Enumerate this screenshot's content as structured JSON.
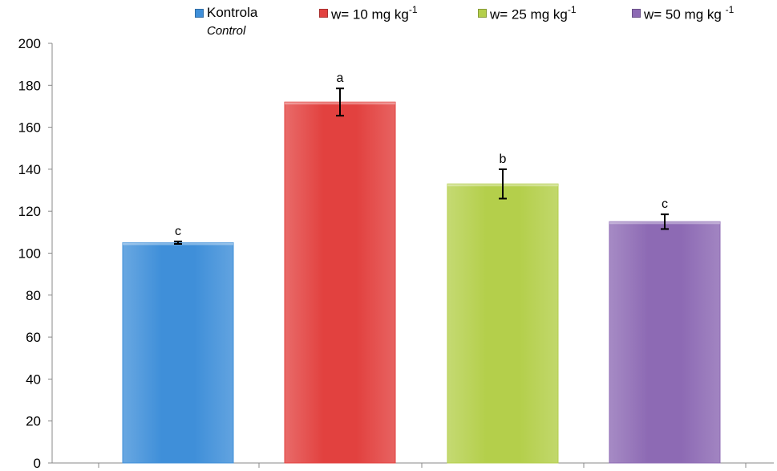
{
  "chart_data": {
    "type": "bar",
    "categories": [
      "Kontrola",
      "w= 10 mg kg-1",
      "w= 25 mg kg-1",
      "w= 50 mg kg-1"
    ],
    "values": [
      105,
      172,
      133,
      115
    ],
    "errors": [
      0.6,
      6.5,
      7,
      3.5
    ],
    "significance": [
      "c",
      "a",
      "b",
      "c"
    ],
    "colors": [
      "#3f8fd9",
      "#e2413f",
      "#b4cf4b",
      "#8d6ab4"
    ],
    "ylim": [
      0,
      200
    ],
    "yticks": [
      0,
      20,
      40,
      60,
      80,
      100,
      120,
      140,
      160,
      180,
      200
    ],
    "title": "",
    "xlabel": "",
    "ylabel": "",
    "grid": false,
    "legend_position": "top"
  },
  "legend": {
    "items": [
      {
        "label": "Kontrola",
        "sub": "Control",
        "sup": "",
        "color": "#3f8fd9"
      },
      {
        "label": "w= 10 mg kg",
        "sup": "-1",
        "color": "#e2413f"
      },
      {
        "label": "w= 25 mg kg",
        "sup": "-1",
        "color": "#b4cf4b"
      },
      {
        "label": "w= 50 mg kg ",
        "sup": "-1",
        "color": "#8d6ab4"
      }
    ]
  }
}
